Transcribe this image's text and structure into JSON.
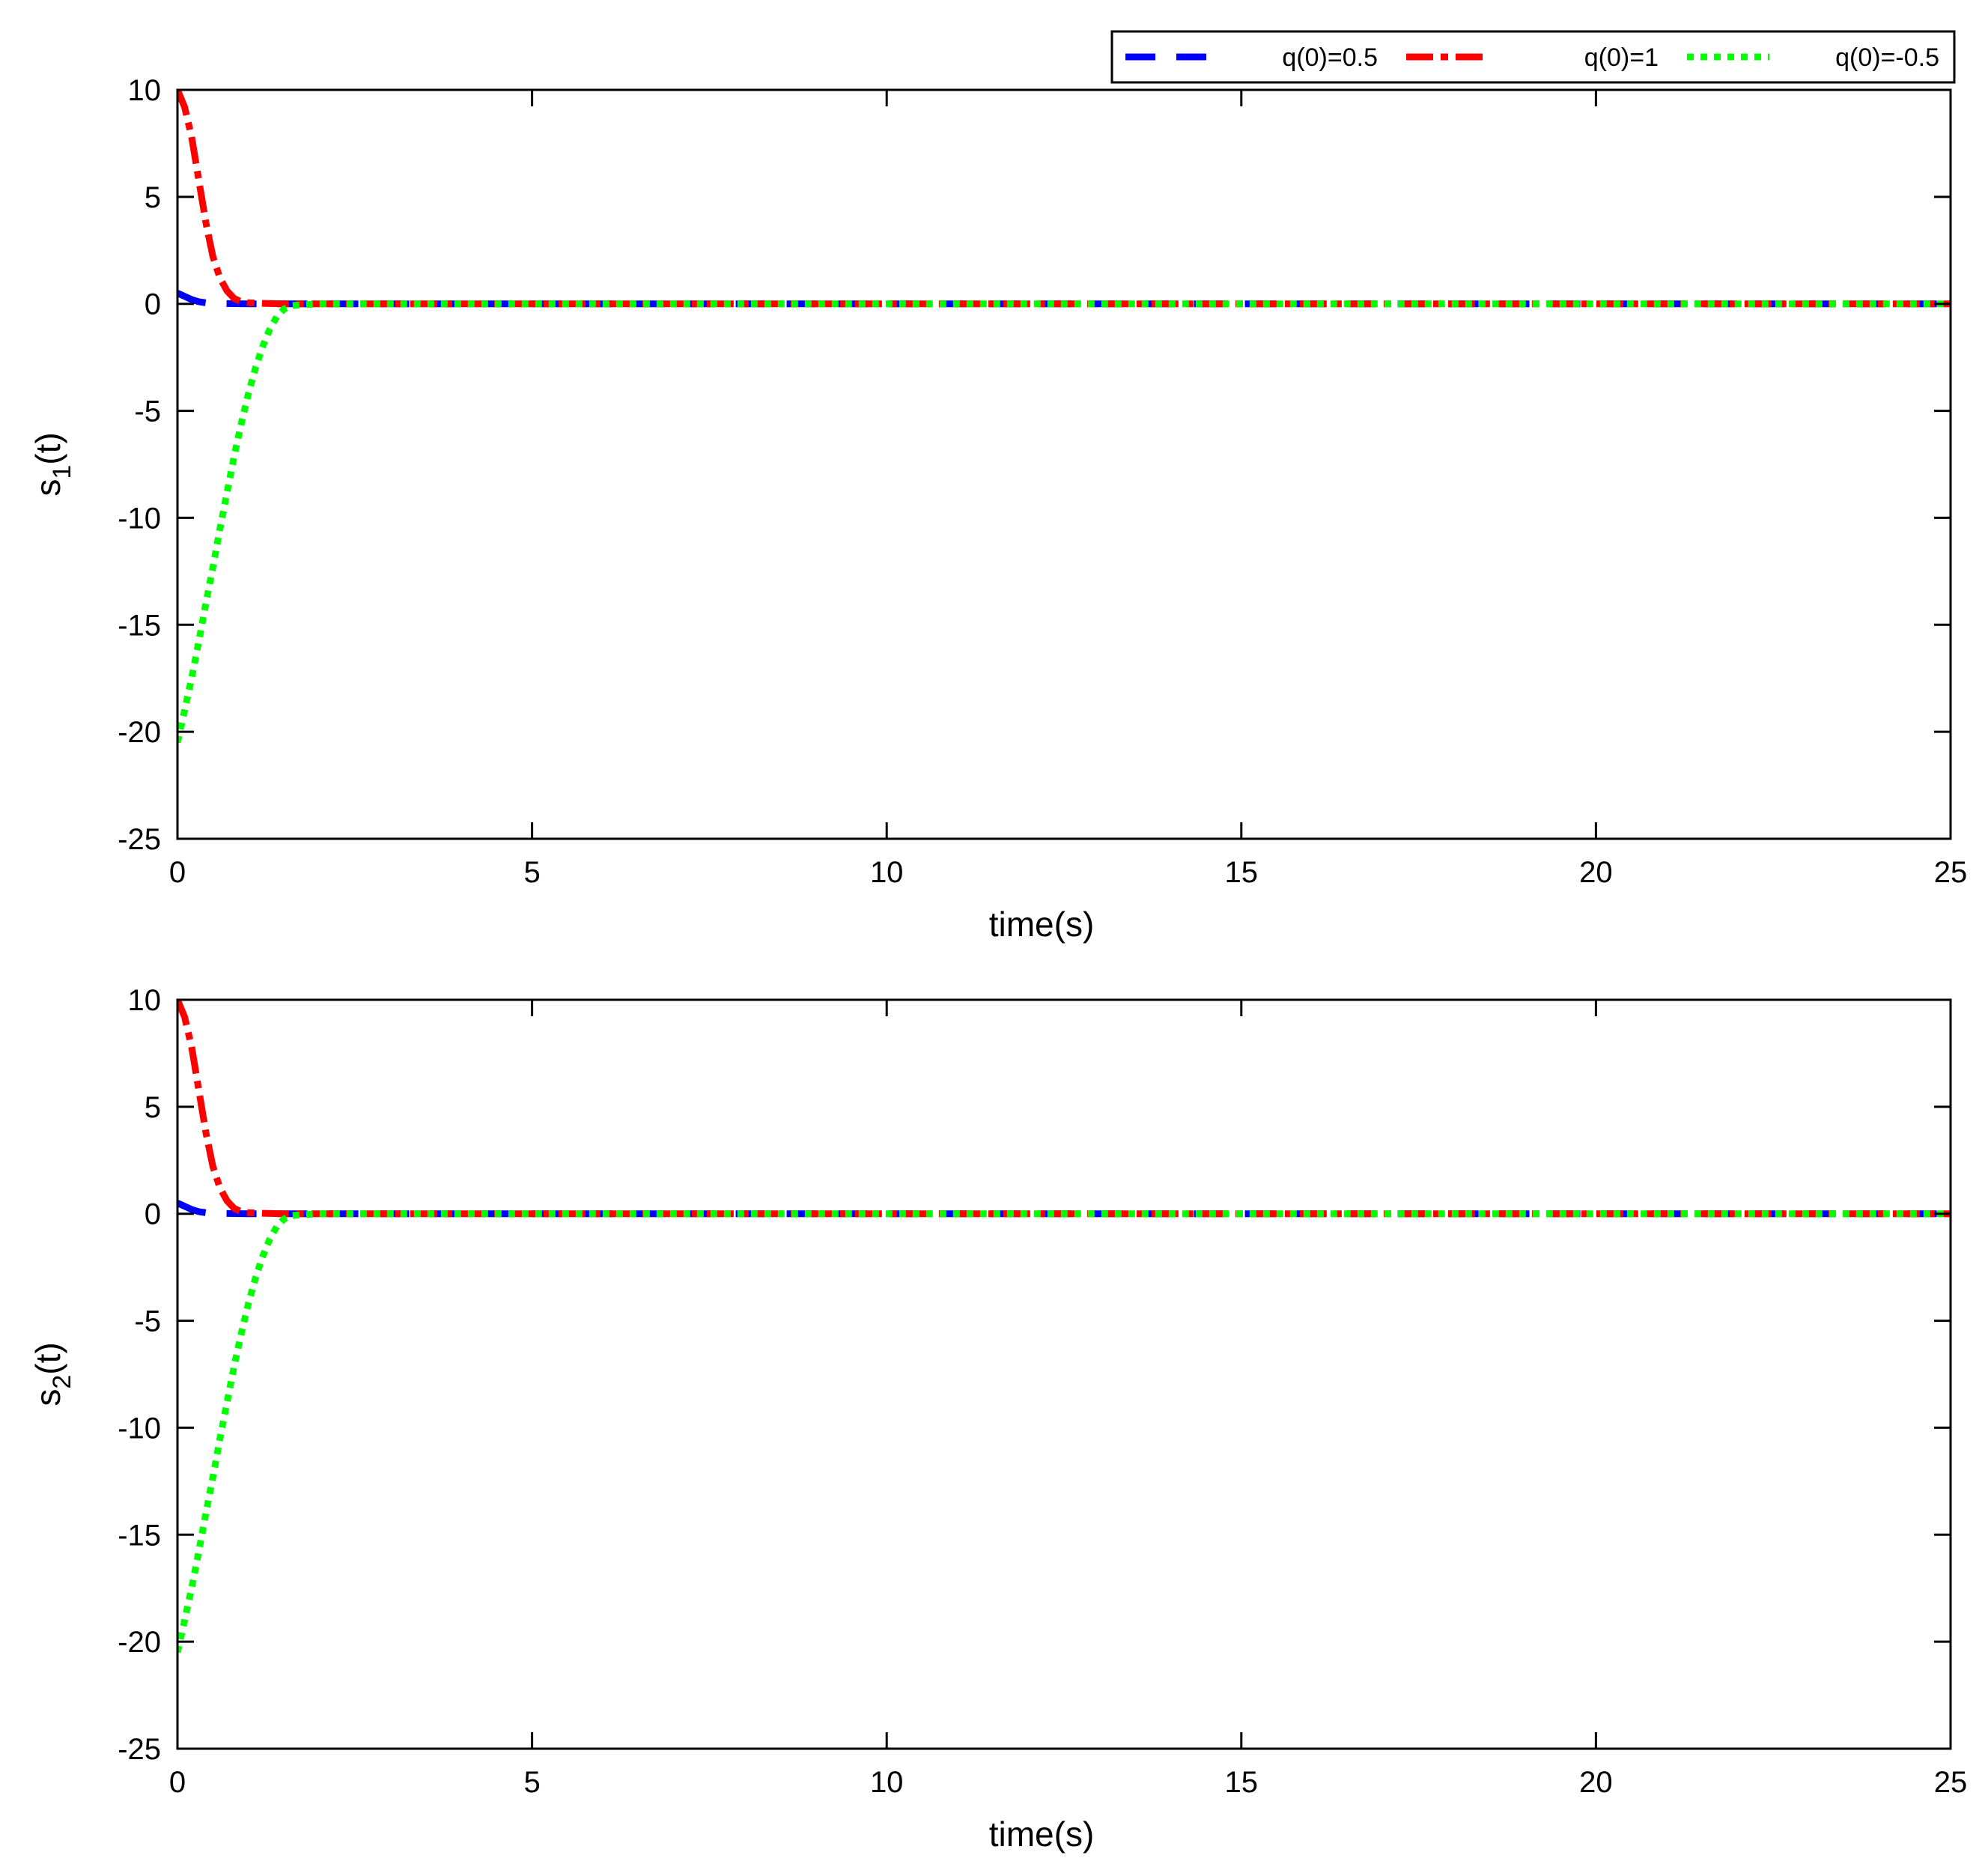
{
  "chart_data": [
    {
      "type": "line",
      "xlabel": "time(s)",
      "ylabel_base": "s",
      "ylabel_sub": "1",
      "ylabel_suffix": "(t)",
      "xlim": [
        0,
        25
      ],
      "ylim": [
        -25,
        10
      ],
      "xticks": [
        "0",
        "5",
        "10",
        "15",
        "20",
        "25"
      ],
      "yticks": [
        "10",
        "5",
        "0",
        "-5",
        "-10",
        "-15",
        "-20",
        "-25"
      ],
      "grid": false,
      "legend": "top-right (above axes)",
      "series": [
        {
          "name": "q(0)=0.5",
          "color": "#0000ff",
          "style": "dashed",
          "x": [
            0,
            0.1,
            0.2,
            0.3,
            0.4,
            0.5,
            0.7,
            1.0,
            1.5,
            2,
            5,
            10,
            15,
            20,
            25
          ],
          "y": [
            0.5,
            0.35,
            0.2,
            0.1,
            0.05,
            0.02,
            0.01,
            0,
            0,
            0,
            0,
            0,
            0,
            0,
            0
          ]
        },
        {
          "name": "q(0)=1",
          "color": "#ff0000",
          "style": "dash-dot",
          "x": [
            0,
            0.1,
            0.2,
            0.3,
            0.4,
            0.5,
            0.6,
            0.7,
            0.8,
            0.9,
            1.0,
            1.2,
            1.5,
            2,
            5,
            10,
            15,
            20,
            25
          ],
          "y": [
            10,
            9.2,
            7.8,
            5.8,
            3.8,
            2.2,
            1.2,
            0.6,
            0.25,
            0.1,
            0.05,
            0.02,
            0,
            0,
            0,
            0,
            0,
            0,
            0
          ]
        },
        {
          "name": "q(0)=-0.5",
          "color": "#00ff00",
          "style": "dotted",
          "x": [
            0,
            0.1,
            0.2,
            0.3,
            0.4,
            0.5,
            0.6,
            0.7,
            0.8,
            0.9,
            1.0,
            1.1,
            1.2,
            1.3,
            1.4,
            1.5,
            1.6,
            2,
            5,
            10,
            15,
            20,
            25
          ],
          "y": [
            -20.5,
            -19,
            -17.5,
            -15.8,
            -14,
            -12.3,
            -10.5,
            -8.8,
            -7.1,
            -5.6,
            -4.2,
            -3.0,
            -2.0,
            -1.2,
            -0.6,
            -0.25,
            -0.08,
            0,
            0,
            0,
            0,
            0,
            0
          ]
        }
      ]
    },
    {
      "type": "line",
      "xlabel": "time(s)",
      "ylabel_base": "s",
      "ylabel_sub": "2",
      "ylabel_suffix": "(t)",
      "xlim": [
        0,
        25
      ],
      "ylim": [
        -25,
        10
      ],
      "xticks": [
        "0",
        "5",
        "10",
        "15",
        "20",
        "25"
      ],
      "yticks": [
        "10",
        "5",
        "0",
        "-5",
        "-10",
        "-15",
        "-20",
        "-25"
      ],
      "grid": false,
      "series": [
        {
          "color": "#0000ff",
          "style": "dashed",
          "x": [
            0,
            0.1,
            0.2,
            0.3,
            0.4,
            0.5,
            0.7,
            1.0,
            1.5,
            2,
            5,
            10,
            15,
            20,
            25
          ],
          "y": [
            0.5,
            0.35,
            0.2,
            0.1,
            0.05,
            0.02,
            0.01,
            0,
            0,
            0,
            0,
            0,
            0,
            0,
            0
          ]
        },
        {
          "color": "#ff0000",
          "style": "dash-dot",
          "x": [
            0,
            0.1,
            0.2,
            0.3,
            0.4,
            0.5,
            0.6,
            0.7,
            0.8,
            0.9,
            1.0,
            1.2,
            1.5,
            2,
            5,
            10,
            15,
            20,
            25
          ],
          "y": [
            10,
            9.2,
            7.8,
            5.8,
            3.8,
            2.2,
            1.2,
            0.6,
            0.25,
            0.1,
            0.05,
            0.02,
            0,
            0,
            0,
            0,
            0,
            0,
            0
          ]
        },
        {
          "color": "#00ff00",
          "style": "dotted",
          "x": [
            0,
            0.1,
            0.2,
            0.3,
            0.4,
            0.5,
            0.6,
            0.7,
            0.8,
            0.9,
            1.0,
            1.1,
            1.2,
            1.3,
            1.4,
            1.5,
            1.6,
            2,
            5,
            10,
            15,
            20,
            25
          ],
          "y": [
            -20.5,
            -19,
            -17.5,
            -15.8,
            -14,
            -12.3,
            -10.5,
            -8.8,
            -7.1,
            -5.6,
            -4.2,
            -3.0,
            -2.0,
            -1.2,
            -0.6,
            -0.25,
            -0.08,
            0,
            0,
            0,
            0,
            0,
            0
          ]
        }
      ]
    }
  ]
}
